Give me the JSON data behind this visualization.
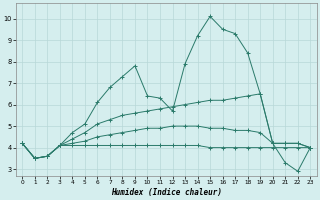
{
  "xlabel": "Humidex (Indice chaleur)",
  "xlim": [
    -0.5,
    23.5
  ],
  "ylim": [
    2.7,
    10.7
  ],
  "xticks": [
    0,
    1,
    2,
    3,
    4,
    5,
    6,
    7,
    8,
    9,
    10,
    11,
    12,
    13,
    14,
    15,
    16,
    17,
    18,
    19,
    20,
    21,
    22,
    23
  ],
  "yticks": [
    3,
    4,
    5,
    6,
    7,
    8,
    9,
    10
  ],
  "background_color": "#d5eeee",
  "grid_color": "#b8d8d8",
  "line_color": "#2a7a6a",
  "lines": [
    [
      4.2,
      3.5,
      3.6,
      4.1,
      4.7,
      5.1,
      6.1,
      6.8,
      7.3,
      7.8,
      6.4,
      6.3,
      5.7,
      7.9,
      9.2,
      10.1,
      9.5,
      9.3,
      8.4,
      6.5,
      4.2,
      3.3,
      2.9,
      4.0
    ],
    [
      4.2,
      3.5,
      3.6,
      4.1,
      4.4,
      4.7,
      5.1,
      5.3,
      5.5,
      5.6,
      5.7,
      5.8,
      5.9,
      6.0,
      6.1,
      6.2,
      6.2,
      6.3,
      6.4,
      6.5,
      4.2,
      4.2,
      4.2,
      4.0
    ],
    [
      4.2,
      3.5,
      3.6,
      4.1,
      4.2,
      4.3,
      4.5,
      4.6,
      4.7,
      4.8,
      4.9,
      4.9,
      5.0,
      5.0,
      5.0,
      4.9,
      4.9,
      4.8,
      4.8,
      4.7,
      4.2,
      4.2,
      4.2,
      4.0
    ],
    [
      4.2,
      3.5,
      3.6,
      4.1,
      4.1,
      4.1,
      4.1,
      4.1,
      4.1,
      4.1,
      4.1,
      4.1,
      4.1,
      4.1,
      4.1,
      4.0,
      4.0,
      4.0,
      4.0,
      4.0,
      4.0,
      4.0,
      4.0,
      4.0
    ]
  ]
}
